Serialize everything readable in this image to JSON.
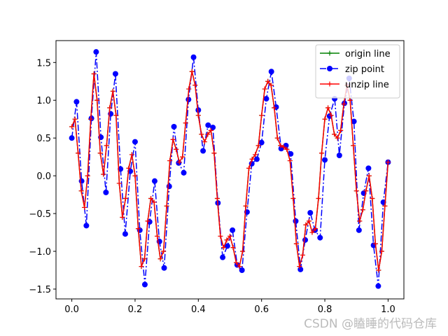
{
  "chart_data": {
    "type": "line",
    "watermark": "CSDN @瞌睡的代码仓库",
    "legend": "upper right",
    "xlim": [
      -0.05,
      1.05
    ],
    "ylim": [
      -1.63,
      1.79
    ],
    "xticks": [
      {
        "value": 0,
        "label": "0.0"
      },
      {
        "value": 0.2,
        "label": "0.2"
      },
      {
        "value": 0.4,
        "label": "0.4"
      },
      {
        "value": 0.6,
        "label": "0.6"
      },
      {
        "value": 0.8,
        "label": "0.8"
      },
      {
        "value": 1,
        "label": "1.0"
      }
    ],
    "yticks": [
      {
        "value": -1.5,
        "label": "−1.5"
      },
      {
        "value": -1,
        "label": "−1.0"
      },
      {
        "value": -0.5,
        "label": "−0.5"
      },
      {
        "value": 0,
        "label": "0.0"
      },
      {
        "value": 0.5,
        "label": "0.5"
      },
      {
        "value": 1,
        "label": "1.0"
      },
      {
        "value": 1.5,
        "label": "1.5"
      }
    ],
    "series": [
      {
        "name": "origin line",
        "color": "#008000",
        "marker": "plus",
        "dash": "solid",
        "x": [
          0,
          0.01,
          0.02,
          0.03,
          0.04,
          0.05,
          0.06,
          0.07,
          0.08,
          0.09,
          0.1,
          0.11,
          0.12,
          0.13,
          0.14,
          0.15,
          0.16,
          0.17,
          0.18,
          0.19,
          0.2,
          0.21,
          0.22,
          0.23,
          0.24,
          0.25,
          0.26,
          0.27,
          0.28,
          0.29,
          0.3,
          0.31,
          0.32,
          0.33,
          0.34,
          0.35,
          0.36,
          0.37,
          0.38,
          0.39,
          0.4,
          0.41,
          0.42,
          0.43,
          0.44,
          0.45,
          0.46,
          0.47,
          0.48,
          0.49,
          0.5,
          0.51,
          0.52,
          0.53,
          0.54,
          0.55,
          0.56,
          0.57,
          0.58,
          0.59,
          0.6,
          0.61,
          0.62,
          0.63,
          0.64,
          0.65,
          0.66,
          0.67,
          0.68,
          0.69,
          0.7,
          0.71,
          0.72,
          0.73,
          0.74,
          0.75,
          0.76,
          0.77,
          0.78,
          0.79,
          0.8,
          0.81,
          0.82,
          0.83,
          0.84,
          0.85,
          0.86,
          0.87,
          0.88,
          0.89,
          0.9,
          0.91,
          0.92,
          0.93,
          0.94,
          0.95,
          0.96,
          0.97,
          0.98,
          0.99,
          1
        ],
        "values": [
          0.65,
          0.75,
          0.3,
          -0.2,
          -0.42,
          0,
          0.75,
          1.35,
          1,
          0.3,
          0.02,
          0.4,
          0.9,
          1.12,
          0.8,
          -0.1,
          -0.55,
          -0.3,
          0.1,
          0.28,
          0,
          -0.7,
          -1.2,
          -1.1,
          -0.6,
          -0.3,
          -0.35,
          -0.8,
          -1.1,
          -1,
          -0.4,
          0.2,
          0.48,
          0.35,
          0.18,
          0.25,
          0.7,
          1.15,
          1.38,
          1.2,
          0.8,
          0.55,
          0.45,
          0.55,
          0.6,
          0.3,
          -0.3,
          -0.8,
          -0.95,
          -0.85,
          -0.8,
          -0.95,
          -1.15,
          -1.2,
          -1,
          -0.4,
          0.1,
          0.22,
          0.28,
          0.4,
          0.8,
          1.15,
          1.25,
          1.2,
          0.9,
          0.5,
          0.4,
          0.38,
          0.35,
          0.2,
          -0.3,
          -0.9,
          -1.2,
          -1.05,
          -0.65,
          -0.6,
          -0.75,
          -0.7,
          -0.3,
          0.3,
          0.75,
          0.9,
          0.8,
          0.55,
          0.5,
          0.6,
          0.95,
          1.2,
          1,
          0.4,
          -0.2,
          -0.6,
          -0.45,
          -0.2,
          0,
          -0.3,
          -0.9,
          -1.25,
          -1,
          -0.4,
          0.18
        ]
      },
      {
        "name": "zip point",
        "color": "#0000ff",
        "marker": "circle",
        "dash": "dashdot",
        "x": [
          0,
          0.015,
          0.031,
          0.046,
          0.062,
          0.077,
          0.092,
          0.108,
          0.123,
          0.138,
          0.154,
          0.169,
          0.185,
          0.2,
          0.215,
          0.231,
          0.246,
          0.262,
          0.277,
          0.292,
          0.308,
          0.323,
          0.338,
          0.354,
          0.369,
          0.385,
          0.4,
          0.415,
          0.431,
          0.446,
          0.462,
          0.477,
          0.492,
          0.508,
          0.523,
          0.538,
          0.554,
          0.569,
          0.585,
          0.6,
          0.615,
          0.631,
          0.646,
          0.662,
          0.677,
          0.692,
          0.708,
          0.723,
          0.738,
          0.754,
          0.769,
          0.785,
          0.8,
          0.815,
          0.831,
          0.846,
          0.862,
          0.877,
          0.892,
          0.908,
          0.923,
          0.938,
          0.954,
          0.969,
          0.985,
          1
        ],
        "values": [
          0.5,
          0.98,
          -0.07,
          -0.66,
          0.76,
          1.64,
          0.51,
          -0.22,
          0.82,
          1.35,
          0.09,
          -0.77,
          0.06,
          0.45,
          -0.72,
          -1.44,
          -0.61,
          -0.07,
          -0.87,
          -1.22,
          -0.14,
          0.65,
          0.17,
          0.04,
          1.01,
          1.57,
          0.87,
          0.33,
          0.67,
          0.64,
          -0.36,
          -1.08,
          -0.93,
          -0.72,
          -1.18,
          -1.25,
          -0.48,
          0.16,
          0.22,
          0.44,
          1.02,
          1.38,
          0.91,
          0.36,
          0.4,
          0.29,
          -0.6,
          -1.24,
          -0.85,
          -0.49,
          -0.72,
          -0.82,
          0.21,
          0.79,
          1.02,
          0.27,
          0.96,
          1.29,
          0.72,
          -0.72,
          -0.23,
          0.1,
          -0.92,
          -1.46,
          -0.35,
          0.18
        ]
      },
      {
        "name": "unzip line",
        "color": "#ff0000",
        "marker": "plus",
        "dash": "solid",
        "x": [
          0,
          0.01,
          0.02,
          0.03,
          0.04,
          0.05,
          0.06,
          0.07,
          0.08,
          0.09,
          0.1,
          0.11,
          0.12,
          0.13,
          0.14,
          0.15,
          0.16,
          0.17,
          0.18,
          0.19,
          0.2,
          0.21,
          0.22,
          0.23,
          0.24,
          0.25,
          0.26,
          0.27,
          0.28,
          0.29,
          0.3,
          0.31,
          0.32,
          0.33,
          0.34,
          0.35,
          0.36,
          0.37,
          0.38,
          0.39,
          0.4,
          0.41,
          0.42,
          0.43,
          0.44,
          0.45,
          0.46,
          0.47,
          0.48,
          0.49,
          0.5,
          0.51,
          0.52,
          0.53,
          0.54,
          0.55,
          0.56,
          0.57,
          0.58,
          0.59,
          0.6,
          0.61,
          0.62,
          0.63,
          0.64,
          0.65,
          0.66,
          0.67,
          0.68,
          0.69,
          0.7,
          0.71,
          0.72,
          0.73,
          0.74,
          0.75,
          0.76,
          0.77,
          0.78,
          0.79,
          0.8,
          0.81,
          0.82,
          0.83,
          0.84,
          0.85,
          0.86,
          0.87,
          0.88,
          0.89,
          0.9,
          0.91,
          0.92,
          0.93,
          0.94,
          0.95,
          0.96,
          0.97,
          0.98,
          0.99,
          1
        ],
        "values": [
          0.65,
          0.75,
          0.3,
          -0.2,
          -0.42,
          0,
          0.75,
          1.35,
          1,
          0.3,
          0.02,
          0.4,
          0.9,
          1.12,
          0.8,
          -0.1,
          -0.55,
          -0.3,
          0.1,
          0.28,
          0,
          -0.7,
          -1.2,
          -1.1,
          -0.6,
          -0.3,
          -0.35,
          -0.8,
          -1.1,
          -1,
          -0.4,
          0.2,
          0.48,
          0.35,
          0.18,
          0.25,
          0.7,
          1.15,
          1.38,
          1.2,
          0.8,
          0.55,
          0.45,
          0.55,
          0.6,
          0.3,
          -0.3,
          -0.8,
          -0.95,
          -0.85,
          -0.8,
          -0.95,
          -1.15,
          -1.2,
          -1,
          -0.4,
          0.1,
          0.22,
          0.28,
          0.4,
          0.8,
          1.15,
          1.25,
          1.2,
          0.9,
          0.5,
          0.4,
          0.38,
          0.35,
          0.2,
          -0.3,
          -0.9,
          -1.2,
          -1.05,
          -0.65,
          -0.6,
          -0.75,
          -0.7,
          -0.3,
          0.3,
          0.75,
          0.9,
          0.8,
          0.55,
          0.5,
          0.6,
          0.95,
          1.2,
          1,
          0.4,
          -0.2,
          -0.6,
          -0.45,
          -0.2,
          0,
          -0.3,
          -0.9,
          -1.25,
          -1,
          -0.4,
          0.18
        ]
      }
    ]
  }
}
